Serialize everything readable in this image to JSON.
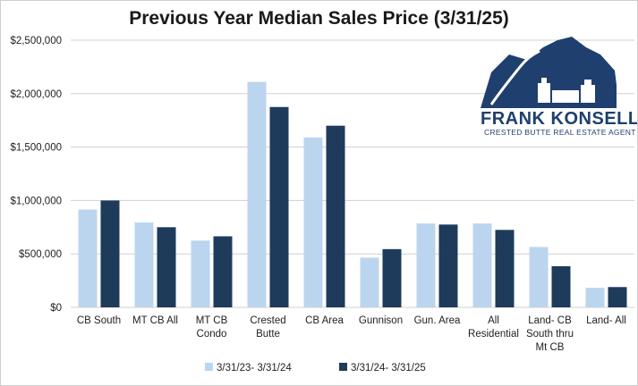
{
  "brand": {
    "name": "FRANK KONSELLA",
    "tagline": "CRESTED BUTTE REAL ESTATE AGENT"
  },
  "colors": {
    "series1": "#bcd5ee",
    "series2": "#1f3b5c",
    "grid": "#d0d0d0",
    "brand": "#1f3f6e"
  },
  "chart_data": {
    "type": "bar",
    "title": "Previous Year Median Sales Price (3/31/25)",
    "xlabel": "",
    "ylabel": "",
    "ylim": [
      0,
      2500000
    ],
    "yticks": [
      0,
      500000,
      1000000,
      1500000,
      2000000,
      2500000
    ],
    "ytick_labels": [
      "$0",
      "$500,000",
      "$1,000,000",
      "$1,500,000",
      "$2,000,000",
      "$2,500,000"
    ],
    "grid": true,
    "legend_position": "bottom",
    "categories": [
      [
        "CB South"
      ],
      [
        "MT CB All"
      ],
      [
        "MT CB",
        "Condo"
      ],
      [
        "Crested",
        "Butte"
      ],
      [
        "CB Area"
      ],
      [
        "Gunnison"
      ],
      [
        "Gun. Area"
      ],
      [
        "All",
        "Residential"
      ],
      [
        "Land- CB",
        "South thru",
        "Mt CB"
      ],
      [
        "Land- All"
      ]
    ],
    "series": [
      {
        "name": "3/31/23- 3/31/24",
        "values": [
          915000,
          795000,
          625000,
          2110000,
          1590000,
          465000,
          785000,
          785000,
          565000,
          183000
        ]
      },
      {
        "name": "3/31/24- 3/31/25",
        "values": [
          1000000,
          750000,
          665000,
          1875000,
          1700000,
          545000,
          775000,
          725000,
          385000,
          190000
        ]
      }
    ]
  }
}
